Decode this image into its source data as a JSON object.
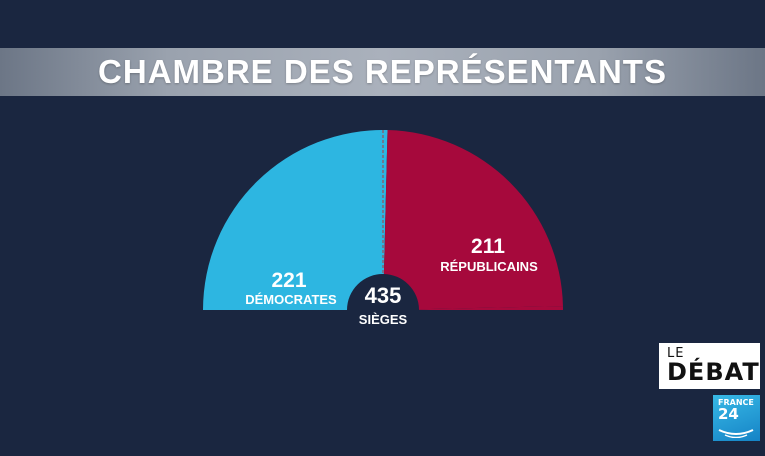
{
  "title": "CHAMBRE DES REPRÉSENTANTS",
  "logos": {
    "debat_line1": "LE",
    "debat_line2": "DÉBAT",
    "f24_line1": "FRANCE",
    "f24_line2": "24"
  },
  "colors": {
    "background": "#1a2640",
    "democrates": "#2db6e1",
    "republicains": "#a6093c"
  },
  "chart_data": {
    "type": "pie",
    "style": "half-donut (hemicycle)",
    "title": "CHAMBRE DES REPRÉSENTANTS",
    "total": {
      "value": "435",
      "label": "SIÈGES"
    },
    "slices": [
      {
        "name": "DÉMOCRATES",
        "value": 221,
        "color": "#2db6e1"
      },
      {
        "name": "RÉPUBLICAINS",
        "value": 211,
        "color": "#a6093c"
      }
    ],
    "labels": {
      "dem_value": "221",
      "dem_name": "DÉMOCRATES",
      "rep_value": "211",
      "rep_name": "RÉPUBLICAINS"
    }
  }
}
